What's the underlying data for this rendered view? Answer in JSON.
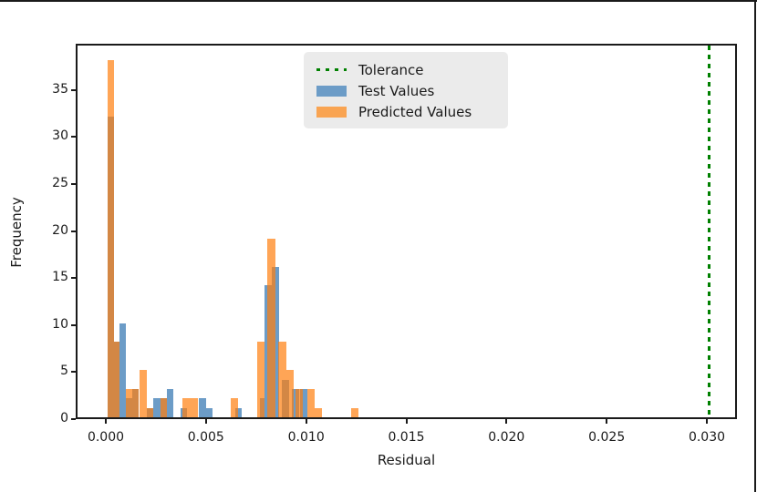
{
  "window": {
    "border_color": "#1a1a1a"
  },
  "chart_data": {
    "type": "bar",
    "subtype": "overlaid-histograms",
    "title": "",
    "xlabel": "Residual",
    "ylabel": "Frequency",
    "grid": false,
    "xlim": [
      -0.0015,
      0.0315
    ],
    "ylim": [
      0,
      39.9
    ],
    "x_ticks": [
      {
        "value": 0.0,
        "label": "0.000"
      },
      {
        "value": 0.005,
        "label": "0.005"
      },
      {
        "value": 0.01,
        "label": "0.010"
      },
      {
        "value": 0.015,
        "label": "0.015"
      },
      {
        "value": 0.02,
        "label": "0.020"
      },
      {
        "value": 0.025,
        "label": "0.025"
      },
      {
        "value": 0.03,
        "label": "0.030"
      }
    ],
    "y_ticks": [
      {
        "value": 0,
        "label": "0"
      },
      {
        "value": 5,
        "label": "5"
      },
      {
        "value": 10,
        "label": "10"
      },
      {
        "value": 15,
        "label": "15"
      },
      {
        "value": 20,
        "label": "20"
      },
      {
        "value": 25,
        "label": "25"
      },
      {
        "value": 30,
        "label": "30"
      },
      {
        "value": 35,
        "label": "35"
      }
    ],
    "tolerance_line": {
      "x": 0.03,
      "color": "#008000",
      "style": "dotted",
      "label": "Tolerance"
    },
    "legend": {
      "position": "upper-center-left",
      "background": "#ebebeb",
      "items": [
        {
          "sample": "line-dotted",
          "color": "#008000",
          "label": "Tolerance"
        },
        {
          "sample": "patch",
          "color": "#6c9cc7",
          "label": "Test Values"
        },
        {
          "sample": "patch",
          "color": "#f9a452",
          "label": "Predicted Values"
        }
      ]
    },
    "series": [
      {
        "name": "Test Values",
        "base_color": "#1f77b4",
        "alpha": 0.7,
        "rendered_color": "#6c9cc7",
        "bars": [
          {
            "x0": 0.0,
            "x1": 0.00032,
            "h": 32
          },
          {
            "x0": 0.00032,
            "x1": 0.00061,
            "h": 8
          },
          {
            "x0": 0.00061,
            "x1": 0.00091,
            "h": 10
          },
          {
            "x0": 0.00091,
            "x1": 0.00123,
            "h": 2
          },
          {
            "x0": 0.00123,
            "x1": 0.00155,
            "h": 3
          },
          {
            "x0": 0.00196,
            "x1": 0.00228,
            "h": 1
          },
          {
            "x0": 0.00228,
            "x1": 0.00264,
            "h": 2
          },
          {
            "x0": 0.00264,
            "x1": 0.00296,
            "h": 2
          },
          {
            "x0": 0.00296,
            "x1": 0.00328,
            "h": 3
          },
          {
            "x0": 0.00364,
            "x1": 0.00396,
            "h": 1
          },
          {
            "x0": 0.00455,
            "x1": 0.00492,
            "h": 2
          },
          {
            "x0": 0.00492,
            "x1": 0.00523,
            "h": 1
          },
          {
            "x0": 0.00637,
            "x1": 0.00669,
            "h": 1
          },
          {
            "x0": 0.0076,
            "x1": 0.00792,
            "h": 2
          },
          {
            "x0": 0.00783,
            "x1": 0.00819,
            "h": 14
          },
          {
            "x0": 0.00819,
            "x1": 0.00856,
            "h": 16
          },
          {
            "x0": 0.00869,
            "x1": 0.00906,
            "h": 4
          },
          {
            "x0": 0.0092,
            "x1": 0.00956,
            "h": 3
          },
          {
            "x0": 0.0096,
            "x1": 0.00997,
            "h": 3
          }
        ]
      },
      {
        "name": "Predicted Values",
        "base_color": "#ff7f0e",
        "alpha": 0.7,
        "rendered_color": "#ffa757",
        "bars": [
          {
            "x0": 0.0,
            "x1": 0.00032,
            "h": 38
          },
          {
            "x0": 0.00032,
            "x1": 0.00061,
            "h": 8
          },
          {
            "x0": 0.00091,
            "x1": 0.00123,
            "h": 3
          },
          {
            "x0": 0.00123,
            "x1": 0.00155,
            "h": 3
          },
          {
            "x0": 0.00159,
            "x1": 0.00196,
            "h": 5
          },
          {
            "x0": 0.00196,
            "x1": 0.00228,
            "h": 1
          },
          {
            "x0": 0.00264,
            "x1": 0.00296,
            "h": 2
          },
          {
            "x0": 0.00373,
            "x1": 0.00414,
            "h": 2
          },
          {
            "x0": 0.00414,
            "x1": 0.00451,
            "h": 2
          },
          {
            "x0": 0.00615,
            "x1": 0.00651,
            "h": 2
          },
          {
            "x0": 0.00747,
            "x1": 0.00783,
            "h": 8
          },
          {
            "x0": 0.00797,
            "x1": 0.00838,
            "h": 19
          },
          {
            "x0": 0.00851,
            "x1": 0.00892,
            "h": 8
          },
          {
            "x0": 0.00892,
            "x1": 0.00929,
            "h": 5
          },
          {
            "x0": 0.00938,
            "x1": 0.00974,
            "h": 3
          },
          {
            "x0": 0.00997,
            "x1": 0.01033,
            "h": 3
          },
          {
            "x0": 0.01033,
            "x1": 0.0107,
            "h": 1
          },
          {
            "x0": 0.01215,
            "x1": 0.01252,
            "h": 1
          }
        ]
      }
    ]
  }
}
